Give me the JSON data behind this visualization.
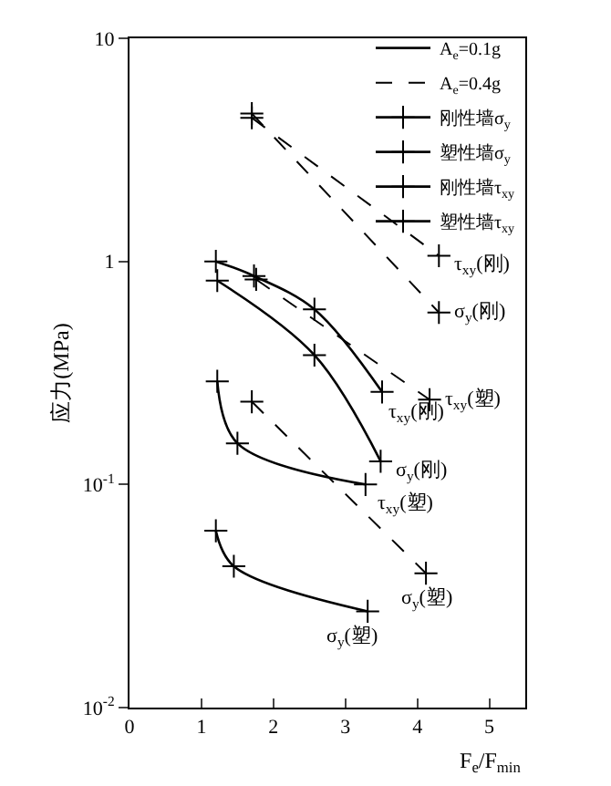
{
  "chart_data": {
    "type": "line",
    "xlabel": "F$_{e}$/F$_{min}$",
    "ylabel": "应力(MPa)",
    "log": "y",
    "legend": "top right",
    "xlim": [
      0,
      5.5
    ],
    "xticks": [
      0,
      1,
      2,
      3,
      4,
      5
    ],
    "ylim": [
      0.01,
      10
    ],
    "yticks": [
      {
        "value": 0.01,
        "label": "10$^{-2}$"
      },
      {
        "value": 0.1,
        "label": "10$^{-1}$"
      },
      1,
      10
    ],
    "series": [
      {
        "name": "τ$_{xy}$(刚)",
        "color": "#000000",
        "line_style": "solid",
        "marker": "cross",
        "x": [
          1.2,
          1.73,
          2.57,
          3.51
        ],
        "values": [
          1.0,
          0.86,
          0.61,
          0.26
        ]
      },
      {
        "name": "σ$_{y}$(刚)",
        "color": "#000000",
        "line_style": "solid",
        "marker": "cross",
        "x": [
          1.22,
          2.57,
          3.49
        ],
        "values": [
          0.82,
          0.38,
          0.127
        ]
      },
      {
        "name": "τ$_{xy}$(塑)",
        "color": "#000000",
        "line_style": "solid",
        "marker": "cross",
        "x": [
          1.22,
          1.5,
          3.28
        ],
        "values": [
          0.29,
          0.153,
          0.1
        ]
      },
      {
        "name": "σ$_{y}$(塑)",
        "color": "#000000",
        "line_style": "solid",
        "marker": "cross",
        "x": [
          1.2,
          1.45,
          3.31
        ],
        "values": [
          0.062,
          0.043,
          0.027
        ]
      },
      {
        "name": "τ$_{xy}$(刚)",
        "color": "#000000",
        "line_style": "dashed",
        "marker": "cross",
        "x": [
          1.7,
          4.3
        ],
        "values": [
          4.4,
          1.06
        ]
      },
      {
        "name": "σ$_{y}$(刚)",
        "color": "#000000",
        "line_style": "dashed",
        "marker": "cross",
        "x": [
          1.7,
          4.3
        ],
        "values": [
          4.6,
          0.59
        ]
      },
      {
        "name": "τ$_{xy}$(塑)",
        "color": "#000000",
        "line_style": "dashed",
        "marker": "cross",
        "x": [
          1.76,
          4.17
        ],
        "values": [
          0.83,
          0.24
        ]
      },
      {
        "name": "σ$_{y}$(塑)",
        "color": "#000000",
        "line_style": "dashed",
        "marker": "cross",
        "x": [
          1.7,
          4.12
        ],
        "values": [
          0.235,
          0.04
        ]
      },
      {
        "name": "A$_{e}$=0.1g",
        "color": "#000000",
        "line_style": "solid",
        "marker": "none"
      },
      {
        "name": "A$_{e}$=0.4g",
        "color": "#000000",
        "line_style": "dashed",
        "marker": "none"
      },
      {
        "name": "刚性墙σ$_{y}$",
        "color": "#000000",
        "line_style": "solid",
        "marker": "cross"
      },
      {
        "name": "塑性墙σ$_{y}$",
        "color": "#000000",
        "line_style": "solid",
        "marker": "cross"
      },
      {
        "name": "刚性墙τ$_{xy}$",
        "color": "#000000",
        "line_style": "solid",
        "marker": "cross"
      },
      {
        "name": "塑性墙τ$_{xy}$",
        "color": "#000000",
        "line_style": "solid",
        "marker": "cross"
      }
    ]
  }
}
